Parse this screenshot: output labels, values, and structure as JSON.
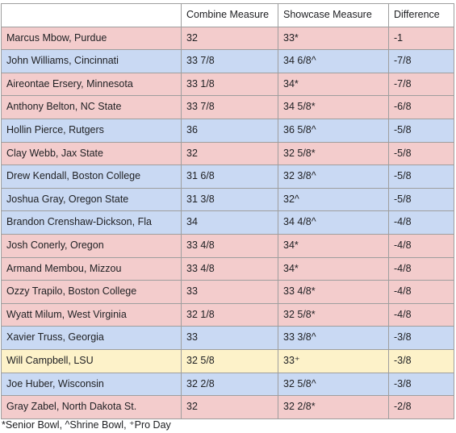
{
  "headers": [
    "",
    "Combine Measure",
    "Showcase Measure",
    "Difference"
  ],
  "colors": {
    "pink": "#f3cccc",
    "blue": "#c9d9f3",
    "yellow": "#fdf2c9",
    "border": "#9e9e9e"
  },
  "rows": [
    {
      "player": "Marcus Mbow, Purdue",
      "combine": "32",
      "showcase": "33*",
      "difference": "-1",
      "color": "pink"
    },
    {
      "player": "John Williams, Cincinnati",
      "combine": "33 7/8",
      "showcase": "34 6/8^",
      "difference": "-7/8",
      "color": "blue"
    },
    {
      "player": "Aireontae Ersery, Minnesota",
      "combine": "33 1/8",
      "showcase": "34*",
      "difference": "-7/8",
      "color": "pink"
    },
    {
      "player": "Anthony Belton, NC State",
      "combine": "33 7/8",
      "showcase": "34 5/8*",
      "difference": "-6/8",
      "color": "pink"
    },
    {
      "player": "Hollin Pierce, Rutgers",
      "combine": "36",
      "showcase": "36 5/8^",
      "difference": "-5/8",
      "color": "blue"
    },
    {
      "player": "Clay Webb, Jax State",
      "combine": "32",
      "showcase": "32 5/8*",
      "difference": "-5/8",
      "color": "pink"
    },
    {
      "player": "Drew Kendall, Boston College",
      "combine": "31 6/8",
      "showcase": "32 3/8^",
      "difference": "-5/8",
      "color": "blue"
    },
    {
      "player": "Joshua Gray, Oregon State",
      "combine": "31 3/8",
      "showcase": "32^",
      "difference": "-5/8",
      "color": "blue"
    },
    {
      "player": "Brandon Crenshaw-Dickson, Fla",
      "combine": "34",
      "showcase": "34 4/8^",
      "difference": "-4/8",
      "color": "blue"
    },
    {
      "player": "Josh Conerly, Oregon",
      "combine": "33 4/8",
      "showcase": "34*",
      "difference": "-4/8",
      "color": "pink"
    },
    {
      "player": "Armand Membou, Mizzou",
      "combine": "33 4/8",
      "showcase": "34*",
      "difference": "-4/8",
      "color": "pink"
    },
    {
      "player": "Ozzy Trapilo, Boston College",
      "combine": "33",
      "showcase": "33 4/8*",
      "difference": "-4/8",
      "color": "pink"
    },
    {
      "player": "Wyatt Milum, West Virginia",
      "combine": "32 1/8",
      "showcase": "32 5/8*",
      "difference": "-4/8",
      "color": "pink"
    },
    {
      "player": "Xavier Truss, Georgia",
      "combine": "33",
      "showcase": "33 3/8^",
      "difference": "-3/8",
      "color": "blue"
    },
    {
      "player": "Will Campbell, LSU",
      "combine": "32 5/8",
      "showcase": "33⁺",
      "difference": "-3/8",
      "color": "yellow"
    },
    {
      "player": "Joe Huber, Wisconsin",
      "combine": "32 2/8",
      "showcase": "32 5/8^",
      "difference": "-3/8",
      "color": "blue"
    },
    {
      "player": "Gray Zabel, North Dakota St.",
      "combine": "32",
      "showcase": "32 2/8*",
      "difference": "-2/8",
      "color": "pink"
    }
  ],
  "footnote": "*Senior Bowl, ^Shrine Bowl, ⁺Pro Day"
}
